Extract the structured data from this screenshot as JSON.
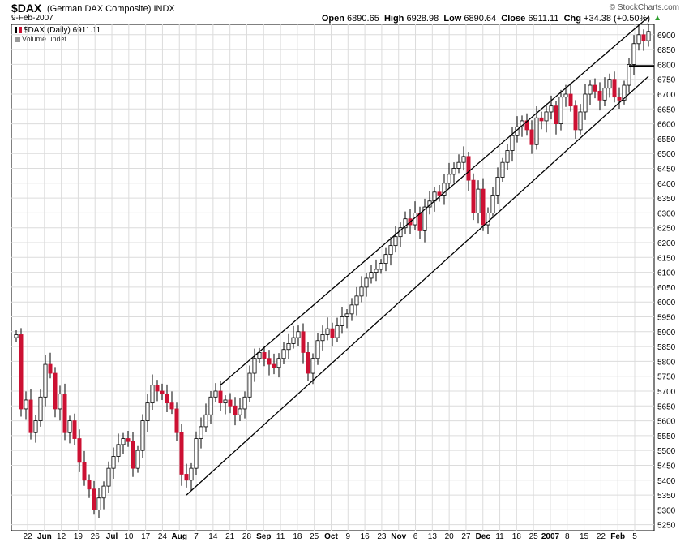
{
  "header": {
    "symbol": "$DAX",
    "name": "(German DAX Composite)",
    "exchange": "INDX",
    "date": "9-Feb-2007",
    "watermark": "© StockCharts.com",
    "open_label": "Open",
    "open_value": "6890.65",
    "high_label": "High",
    "high_value": "6928.98",
    "low_label": "Low",
    "low_value": "6890.64",
    "close_label": "Close",
    "close_value": "6911.11",
    "chg_label": "Chg",
    "chg_value": "+34.38 (+0.50%)",
    "updown_icon": "up-triangle-icon"
  },
  "legend": {
    "series": "$DAX (Daily) 6911.11",
    "volume": "Volume undef"
  },
  "chart_data": {
    "type": "candlestick",
    "ylim": [
      5230,
      6935
    ],
    "y_ticks": [
      5250,
      5300,
      5350,
      5400,
      5450,
      5500,
      5550,
      5600,
      5650,
      5700,
      5750,
      5800,
      5850,
      5900,
      5950,
      6000,
      6050,
      6100,
      6150,
      6200,
      6250,
      6300,
      6350,
      6400,
      6450,
      6500,
      6550,
      6600,
      6650,
      6700,
      6750,
      6800,
      6850,
      6900
    ],
    "x_tick_labels": [
      {
        "label": "22",
        "bold": false
      },
      {
        "label": "Jun",
        "bold": true
      },
      {
        "label": "12",
        "bold": false
      },
      {
        "label": "19",
        "bold": false
      },
      {
        "label": "26",
        "bold": false
      },
      {
        "label": "Jul",
        "bold": true
      },
      {
        "label": "10",
        "bold": false
      },
      {
        "label": "17",
        "bold": false
      },
      {
        "label": "24",
        "bold": false
      },
      {
        "label": "Aug",
        "bold": true
      },
      {
        "label": "7",
        "bold": false
      },
      {
        "label": "14",
        "bold": false
      },
      {
        "label": "21",
        "bold": false
      },
      {
        "label": "28",
        "bold": false
      },
      {
        "label": "Sep",
        "bold": true
      },
      {
        "label": "11",
        "bold": false
      },
      {
        "label": "18",
        "bold": false
      },
      {
        "label": "25",
        "bold": false
      },
      {
        "label": "Oct",
        "bold": true
      },
      {
        "label": "9",
        "bold": false
      },
      {
        "label": "16",
        "bold": false
      },
      {
        "label": "23",
        "bold": false
      },
      {
        "label": "Nov",
        "bold": true
      },
      {
        "label": "6",
        "bold": false
      },
      {
        "label": "13",
        "bold": false
      },
      {
        "label": "20",
        "bold": false
      },
      {
        "label": "27",
        "bold": false
      },
      {
        "label": "Dec",
        "bold": true
      },
      {
        "label": "11",
        "bold": false
      },
      {
        "label": "18",
        "bold": false
      },
      {
        "label": "25",
        "bold": false
      },
      {
        "label": "2007",
        "bold": true
      },
      {
        "label": "8",
        "bold": false
      },
      {
        "label": "15",
        "bold": false
      },
      {
        "label": "22",
        "bold": false
      },
      {
        "label": "Feb",
        "bold": true
      },
      {
        "label": "5",
        "bold": false
      }
    ],
    "up_color": "#ffffff",
    "down_color": "#cc1133",
    "wick_color": "#000000",
    "grid": true,
    "close_points": [
      [
        0,
        5890
      ],
      [
        1,
        5640
      ],
      [
        2,
        5670
      ],
      [
        3,
        5560
      ],
      [
        4,
        5600
      ],
      [
        5,
        5680
      ],
      [
        6,
        5790
      ],
      [
        7,
        5760
      ],
      [
        8,
        5640
      ],
      [
        9,
        5690
      ],
      [
        10,
        5560
      ],
      [
        11,
        5600
      ],
      [
        12,
        5540
      ],
      [
        13,
        5460
      ],
      [
        14,
        5400
      ],
      [
        15,
        5370
      ],
      [
        16,
        5300
      ],
      [
        17,
        5340
      ],
      [
        18,
        5380
      ],
      [
        19,
        5440
      ],
      [
        20,
        5480
      ],
      [
        21,
        5520
      ],
      [
        22,
        5540
      ],
      [
        23,
        5530
      ],
      [
        24,
        5440
      ],
      [
        25,
        5500
      ],
      [
        26,
        5600
      ],
      [
        27,
        5660
      ],
      [
        28,
        5720
      ],
      [
        29,
        5700
      ],
      [
        30,
        5690
      ],
      [
        31,
        5660
      ],
      [
        32,
        5640
      ],
      [
        33,
        5560
      ],
      [
        34,
        5420
      ],
      [
        35,
        5400
      ],
      [
        36,
        5440
      ],
      [
        37,
        5540
      ],
      [
        38,
        5580
      ],
      [
        39,
        5620
      ],
      [
        40,
        5680
      ],
      [
        41,
        5700
      ],
      [
        42,
        5660
      ],
      [
        43,
        5670
      ],
      [
        44,
        5650
      ],
      [
        45,
        5620
      ],
      [
        46,
        5640
      ],
      [
        47,
        5680
      ],
      [
        48,
        5760
      ],
      [
        49,
        5810
      ],
      [
        50,
        5830
      ],
      [
        51,
        5810
      ],
      [
        52,
        5790
      ],
      [
        53,
        5780
      ],
      [
        54,
        5810
      ],
      [
        55,
        5840
      ],
      [
        56,
        5860
      ],
      [
        57,
        5880
      ],
      [
        58,
        5900
      ],
      [
        59,
        5830
      ],
      [
        60,
        5760
      ],
      [
        61,
        5810
      ],
      [
        62,
        5870
      ],
      [
        63,
        5890
      ],
      [
        64,
        5910
      ],
      [
        65,
        5880
      ],
      [
        66,
        5920
      ],
      [
        67,
        5950
      ],
      [
        68,
        5960
      ],
      [
        69,
        5990
      ],
      [
        70,
        6020
      ],
      [
        71,
        6050
      ],
      [
        72,
        6080
      ],
      [
        73,
        6100
      ],
      [
        74,
        6110
      ],
      [
        75,
        6130
      ],
      [
        76,
        6160
      ],
      [
        77,
        6190
      ],
      [
        78,
        6220
      ],
      [
        79,
        6250
      ],
      [
        80,
        6280
      ],
      [
        81,
        6260
      ],
      [
        82,
        6300
      ],
      [
        83,
        6240
      ],
      [
        84,
        6320
      ],
      [
        85,
        6340
      ],
      [
        86,
        6370
      ],
      [
        87,
        6360
      ],
      [
        88,
        6400
      ],
      [
        89,
        6430
      ],
      [
        90,
        6450
      ],
      [
        91,
        6470
      ],
      [
        92,
        6490
      ],
      [
        93,
        6410
      ],
      [
        94,
        6300
      ],
      [
        95,
        6380
      ],
      [
        96,
        6260
      ],
      [
        97,
        6300
      ],
      [
        98,
        6360
      ],
      [
        99,
        6420
      ],
      [
        100,
        6470
      ],
      [
        101,
        6510
      ],
      [
        102,
        6560
      ],
      [
        103,
        6590
      ],
      [
        104,
        6610
      ],
      [
        105,
        6580
      ],
      [
        106,
        6530
      ],
      [
        107,
        6620
      ],
      [
        108,
        6610
      ],
      [
        109,
        6640
      ],
      [
        110,
        6660
      ],
      [
        111,
        6600
      ],
      [
        112,
        6690
      ],
      [
        113,
        6700
      ],
      [
        114,
        6660
      ],
      [
        115,
        6580
      ],
      [
        116,
        6640
      ],
      [
        117,
        6700
      ],
      [
        118,
        6730
      ],
      [
        119,
        6710
      ],
      [
        120,
        6680
      ],
      [
        121,
        6720
      ],
      [
        122,
        6750
      ],
      [
        123,
        6690
      ],
      [
        124,
        6680
      ],
      [
        125,
        6730
      ],
      [
        126,
        6800
      ],
      [
        127,
        6870
      ],
      [
        128,
        6900
      ],
      [
        129,
        6880
      ],
      [
        130,
        6911
      ]
    ],
    "channel_lines": [
      {
        "name": "upper-channel-line",
        "x0": 42,
        "y0": 5720,
        "x1": 130,
        "y1": 6960
      },
      {
        "name": "lower-channel-line",
        "x0": 35,
        "y0": 5350,
        "x1": 130,
        "y1": 6760
      }
    ],
    "resistance_line": {
      "x0": 126,
      "x1": 132,
      "y": 6795
    }
  }
}
